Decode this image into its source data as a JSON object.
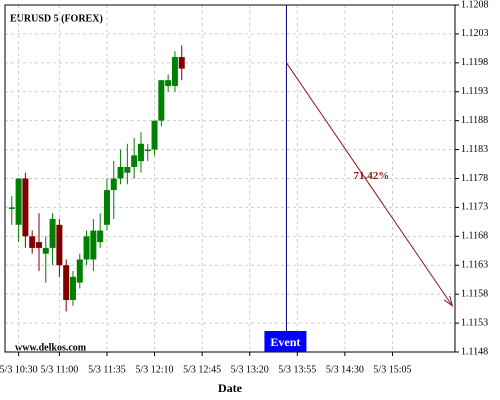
{
  "chart_data": {
    "type": "candlestick",
    "title": "EURUSD 5 (FOREX)",
    "watermark": "www.delkos.com",
    "x_label": "Date",
    "x": [
      "5/3 10:25",
      "5/3 10:30",
      "5/3 10:35",
      "5/3 10:40",
      "5/3 10:45",
      "5/3 10:50",
      "5/3 10:55",
      "5/3 11:00",
      "5/3 11:05",
      "5/3 11:10",
      "5/3 11:15",
      "5/3 11:20",
      "5/3 11:25",
      "5/3 11:30",
      "5/3 11:35",
      "5/3 11:40",
      "5/3 11:45",
      "5/3 11:50",
      "5/3 11:55",
      "5/3 12:00",
      "5/3 12:05",
      "5/3 12:10",
      "5/3 12:15",
      "5/3 12:20",
      "5/3 12:25",
      "5/3 12:30"
    ],
    "open": [
      1.1173,
      1.117,
      1.1178,
      1.1168,
      1.1167,
      1.1165,
      1.1166,
      1.117,
      1.1163,
      1.1157,
      1.116,
      1.1164,
      1.1164,
      1.1167,
      1.117,
      1.1176,
      1.1178,
      1.1179,
      1.118,
      1.1181,
      1.1183,
      1.1183,
      1.1188,
      1.1194,
      1.1194,
      1.1199
    ],
    "high": [
      1.1175,
      1.1178,
      1.1179,
      1.1169,
      1.1172,
      1.1168,
      1.1172,
      1.1171,
      1.1164,
      1.1162,
      1.1165,
      1.1169,
      1.1171,
      1.1172,
      1.1178,
      1.1181,
      1.1183,
      1.1184,
      1.1185,
      1.1186,
      1.1184,
      1.1188,
      1.1195,
      1.1196,
      1.12,
      1.1201
    ],
    "low": [
      1.117,
      1.1167,
      1.1166,
      1.1165,
      1.1162,
      1.116,
      1.1163,
      1.1161,
      1.1155,
      1.1156,
      1.1159,
      1.1163,
      1.1162,
      1.1166,
      1.1169,
      1.1171,
      1.1177,
      1.1177,
      1.1178,
      1.1179,
      1.1181,
      1.1182,
      1.1187,
      1.1193,
      1.1193,
      1.1195
    ],
    "close": [
      1.1173,
      1.1178,
      1.1168,
      1.1166,
      1.1166,
      1.1166,
      1.1171,
      1.1163,
      1.1157,
      1.1161,
      1.1164,
      1.1168,
      1.1169,
      1.1169,
      1.1176,
      1.1178,
      1.118,
      1.118,
      1.1182,
      1.1184,
      1.1183,
      1.1188,
      1.1195,
      1.1195,
      1.1199,
      1.1197
    ],
    "up_color": "#008000",
    "down_color": "#800000",
    "xlim": [
      "5/3 10:20",
      "5/3 15:51"
    ],
    "xticks": [
      "5/3 10:30",
      "5/3 11:00",
      "5/3 11:35",
      "5/3 12:10",
      "5/3 12:45",
      "5/3 13:20",
      "5/3 13:55",
      "5/3 14:30",
      "5/3 15:05"
    ],
    "ylim": [
      1.1148,
      1.1208
    ],
    "yticks": [
      1.1148,
      1.1153,
      1.1158,
      1.1163,
      1.1168,
      1.1173,
      1.1178,
      1.1183,
      1.1188,
      1.1193,
      1.1198,
      1.1203,
      1.1208
    ],
    "grid": true,
    "event": {
      "x": "5/3 13:47",
      "label": "Event",
      "color": "#0000ff"
    },
    "forecast": {
      "x0": "5/3 13:47",
      "y0": 1.1198,
      "x1": "5/3 15:49",
      "y1": 1.1156,
      "label": "71.42%",
      "color": "#8b1a1a"
    }
  }
}
